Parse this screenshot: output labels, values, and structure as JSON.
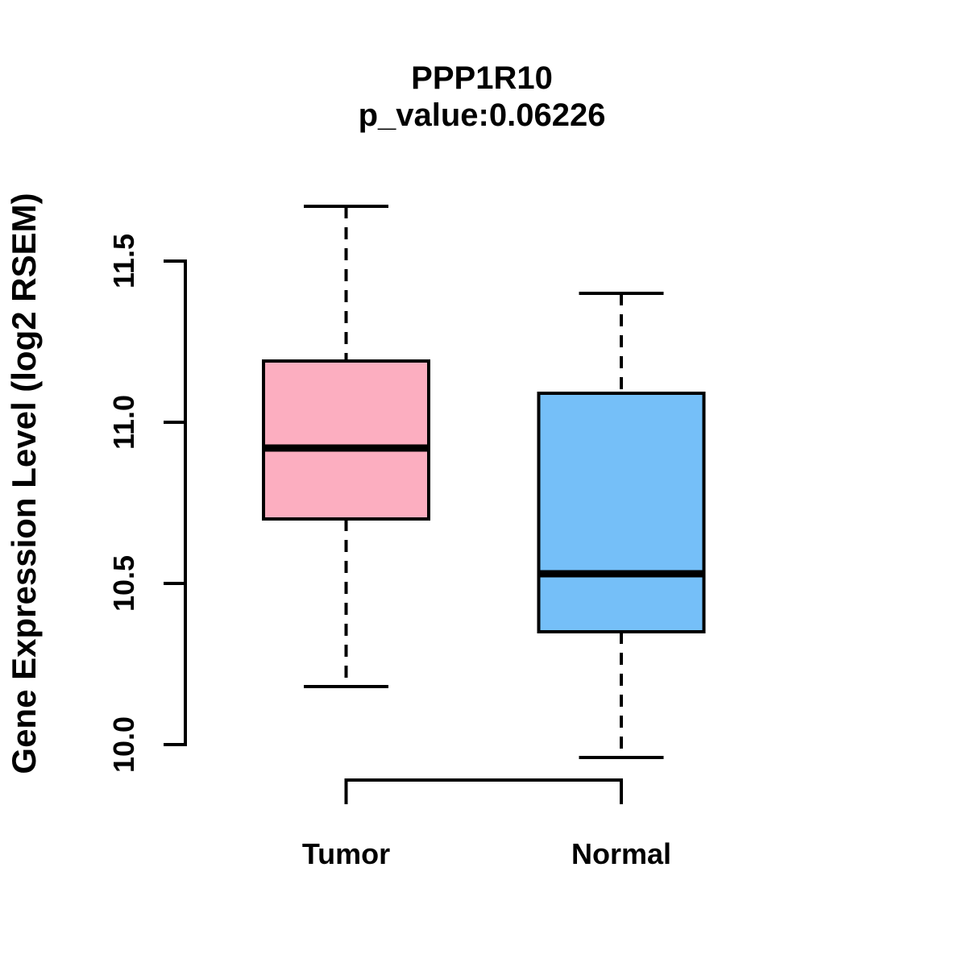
{
  "chart_data": {
    "type": "boxplot",
    "title": "PPP1R10",
    "subtitle": "p_value:0.06226",
    "ylabel": "Gene Expression Level (log2 RSEM)",
    "xlabel": "",
    "y_ticks": [
      10.0,
      10.5,
      11.0,
      11.5
    ],
    "y_tick_labels": [
      "10.0",
      "10.5",
      "11.0",
      "11.5"
    ],
    "ylim": [
      9.9,
      11.7
    ],
    "grid": false,
    "legend": "none",
    "groups": [
      {
        "label": "Tumor",
        "color": "#FCAEC0",
        "lower_whisker": 10.18,
        "q1": 10.7,
        "median": 10.92,
        "q3": 11.19,
        "upper_whisker": 11.67
      },
      {
        "label": "Normal",
        "color": "#75BFF8",
        "lower_whisker": 9.96,
        "q1": 10.35,
        "median": 10.53,
        "q3": 11.09,
        "upper_whisker": 11.4
      }
    ],
    "colors": {
      "line": "#000000",
      "text": "#000000",
      "background": "#FFFFFF"
    }
  }
}
